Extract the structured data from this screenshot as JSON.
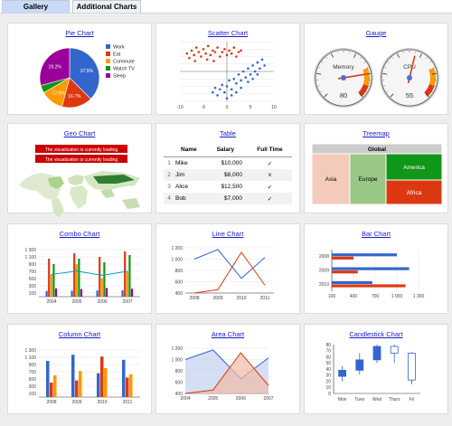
{
  "tabs": [
    {
      "label": "Gallery"
    },
    {
      "label": "Additional Charts"
    }
  ],
  "cards": {
    "pie": {
      "title": "Pie Chart"
    },
    "scatter": {
      "title": "Scatter Chart"
    },
    "gauge": {
      "title": "Gauge"
    },
    "geo": {
      "title": "Geo Chart",
      "loading_1": "The visualization is currently loading",
      "loading_2": "The visualization is currently loading"
    },
    "table": {
      "title": "Table"
    },
    "treemap": {
      "title": "Treemap"
    },
    "combo": {
      "title": "Combo Chart"
    },
    "line": {
      "title": "Line Chart"
    },
    "bar": {
      "title": "Bar Chart"
    },
    "column": {
      "title": "Column Chart"
    },
    "area": {
      "title": "Area Chart"
    },
    "candlestick": {
      "title": "Candlestick Chart"
    }
  },
  "colors": {
    "blue": "#3366cc",
    "red": "#dc3912",
    "orange": "#ff9900",
    "green": "#109618",
    "purple": "#990099",
    "teal": "#0099c6"
  },
  "table": {
    "headers": [
      "Name",
      "Salary",
      "Full Time"
    ],
    "rows": [
      {
        "num": "1",
        "name": "Mike",
        "salary": "$10,000",
        "full": "✓"
      },
      {
        "num": "2",
        "name": "Jim",
        "salary": "$8,000",
        "full": "x"
      },
      {
        "num": "3",
        "name": "Alice",
        "salary": "$12,500",
        "full": "✓"
      },
      {
        "num": "4",
        "name": "Bob",
        "salary": "$7,000",
        "full": "✓"
      }
    ]
  },
  "treemap": {
    "root": "Global",
    "regions": [
      "Asia",
      "Europe",
      "America",
      "Africa"
    ]
  },
  "chart_data": [
    {
      "type": "pie",
      "legend_position": "right",
      "slices": [
        {
          "label": "Work",
          "value": 37.5,
          "color": "#3366cc"
        },
        {
          "label": "Eat",
          "value": 16.7,
          "color": "#dc3912"
        },
        {
          "label": "Commute",
          "value": 12.5,
          "color": "#ff9900"
        },
        {
          "label": "Watch TV",
          "value": 4.2,
          "color": "#109618"
        },
        {
          "label": "Sleep",
          "value": 29.2,
          "color": "#990099"
        }
      ]
    },
    {
      "type": "scatter",
      "xlim": [
        -10,
        10
      ],
      "ylim": [
        -10,
        10
      ],
      "xticks": [
        "-10",
        "-5",
        "0",
        "5",
        "10"
      ],
      "series": [
        {
          "color": "#dc3912",
          "points": [
            [
              -8.5,
              6
            ],
            [
              -8,
              4.5
            ],
            [
              -7.5,
              7
            ],
            [
              -7,
              5.5
            ],
            [
              -6.5,
              8
            ],
            [
              -6,
              6.5
            ],
            [
              -5.5,
              5
            ],
            [
              -5,
              7.5
            ],
            [
              -4.5,
              6
            ],
            [
              -4,
              8.5
            ],
            [
              -3.5,
              5.5
            ],
            [
              -3,
              7
            ],
            [
              -2.5,
              6.5
            ],
            [
              -2,
              8
            ],
            [
              -1.5,
              5
            ],
            [
              -1,
              6.5
            ],
            [
              -0.5,
              7.5
            ],
            [
              0,
              5.5
            ],
            [
              0.5,
              7
            ],
            [
              1,
              6
            ],
            [
              1.5,
              8
            ],
            [
              2,
              5
            ],
            [
              2.5,
              6.5
            ],
            [
              3,
              7
            ],
            [
              -6.8,
              3.5
            ],
            [
              -4.2,
              4
            ],
            [
              -2.8,
              3.5
            ]
          ]
        },
        {
          "color": "#3366cc",
          "points": [
            [
              -3,
              -7
            ],
            [
              -2.5,
              -5.5
            ],
            [
              -2,
              -8
            ],
            [
              -1.5,
              -6
            ],
            [
              -1,
              -4.5
            ],
            [
              -0.5,
              -7
            ],
            [
              0,
              -5
            ],
            [
              0.5,
              -3
            ],
            [
              1,
              -6
            ],
            [
              1.5,
              -2.5
            ],
            [
              2,
              -4
            ],
            [
              2.5,
              -1
            ],
            [
              3,
              -3
            ],
            [
              3.5,
              0
            ],
            [
              4,
              -2
            ],
            [
              4.5,
              1
            ],
            [
              5,
              -1
            ],
            [
              5.5,
              2
            ],
            [
              6,
              0
            ],
            [
              6.5,
              3
            ],
            [
              7,
              1
            ],
            [
              7.5,
              4
            ],
            [
              8,
              2
            ],
            [
              1,
              -8
            ],
            [
              0,
              -9
            ],
            [
              2,
              -7
            ],
            [
              3,
              -5.5
            ],
            [
              4.5,
              -3.5
            ],
            [
              5.5,
              -2.5
            ],
            [
              6.5,
              -1
            ]
          ]
        }
      ]
    },
    {
      "type": "gauge",
      "items": [
        {
          "label": "Memory",
          "value": 80
        },
        {
          "label": "CPU",
          "value": 55
        }
      ],
      "range": [
        0,
        100
      ]
    },
    {
      "type": "bar",
      "subtype": "combo",
      "categories": [
        "2004",
        "2005",
        "2006",
        "2007"
      ],
      "yticks": [
        "100",
        "300",
        "500",
        "700",
        "900",
        "1 100",
        "1 300"
      ],
      "ylim": [
        0,
        1400
      ],
      "series": [
        {
          "color": "#3366cc",
          "values": [
            160,
            165,
            170,
            175
          ]
        },
        {
          "color": "#dc3912",
          "values": [
            1050,
            1200,
            1100,
            1250
          ]
        },
        {
          "color": "#ff9900",
          "values": [
            620,
            900,
            500,
            700
          ]
        },
        {
          "color": "#109618",
          "values": [
            900,
            1050,
            950,
            1150
          ]
        },
        {
          "color": "#990099",
          "values": [
            230,
            210,
            240,
            220
          ]
        }
      ],
      "average": {
        "color": "#0099c6",
        "values": [
          614,
          705,
          592,
          699
        ]
      }
    },
    {
      "type": "line",
      "categories": [
        "2008",
        "2009",
        "2010",
        "2011"
      ],
      "yticks": [
        "400",
        "600",
        "800",
        "1 000",
        "1 200"
      ],
      "ylim": [
        400,
        1200
      ],
      "series": [
        {
          "color": "#3366cc",
          "values": [
            1000,
            1170,
            660,
            1030
          ]
        },
        {
          "color": "#dc3912",
          "values": [
            400,
            460,
            1120,
            540
          ]
        }
      ]
    },
    {
      "type": "bar",
      "orientation": "horizontal",
      "categories": [
        "2008",
        "2009",
        "2010"
      ],
      "xticks": [
        "100",
        "400",
        "700",
        "1 000",
        "1 300"
      ],
      "xlim": [
        100,
        1300
      ],
      "series": [
        {
          "color": "#3366cc",
          "values": [
            1000,
            1170,
            660
          ]
        },
        {
          "color": "#dc3912",
          "values": [
            400,
            460,
            1120
          ]
        }
      ]
    },
    {
      "type": "bar",
      "subtype": "column",
      "categories": [
        "2008",
        "2009",
        "2010",
        "2011"
      ],
      "yticks": [
        "100",
        "300",
        "500",
        "700",
        "900",
        "1 100",
        "1 300"
      ],
      "ylim": [
        0,
        1400
      ],
      "series": [
        {
          "color": "#3366cc",
          "values": [
            1000,
            1170,
            660,
            1030
          ]
        },
        {
          "color": "#dc3912",
          "values": [
            400,
            460,
            1120,
            540
          ]
        },
        {
          "color": "#ff9900",
          "values": [
            600,
            720,
            800,
            630
          ]
        }
      ]
    },
    {
      "type": "area",
      "categories": [
        "2004",
        "2005",
        "2006",
        "2007"
      ],
      "yticks": [
        "400",
        "600",
        "800",
        "1 000",
        "1 200"
      ],
      "ylim": [
        400,
        1200
      ],
      "series": [
        {
          "color": "#3366cc",
          "values": [
            1000,
            1170,
            660,
            1030
          ]
        },
        {
          "color": "#dc3912",
          "values": [
            400,
            460,
            1120,
            540
          ]
        }
      ]
    },
    {
      "type": "candlestick",
      "categories": [
        "Mon",
        "Tues",
        "Wed",
        "Thurs",
        "Fri"
      ],
      "yticks": [
        "0",
        "10",
        "20",
        "30",
        "40",
        "50",
        "60",
        "70",
        "80"
      ],
      "ylim": [
        0,
        80
      ],
      "candles": [
        {
          "low": 20,
          "open": 28,
          "close": 38,
          "high": 45
        },
        {
          "low": 31,
          "open": 38,
          "close": 55,
          "high": 66
        },
        {
          "low": 50,
          "open": 55,
          "close": 77,
          "high": 80
        },
        {
          "low": 50,
          "open": 77,
          "close": 66,
          "high": 80
        },
        {
          "low": 15,
          "open": 66,
          "close": 22,
          "high": 68
        }
      ]
    }
  ]
}
